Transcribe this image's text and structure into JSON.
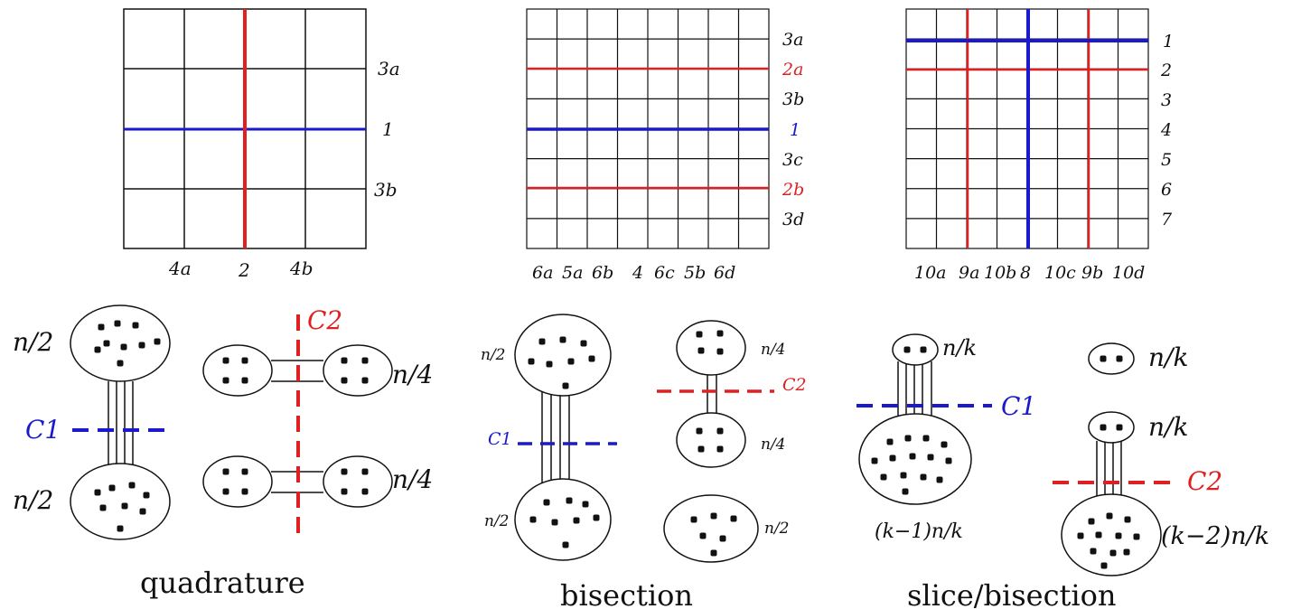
{
  "colors": {
    "black": "#111111",
    "red": "#e02020",
    "blue": "#1a1acc"
  },
  "grid1": {
    "right_labels": [
      {
        "text": "3a",
        "color": "black"
      },
      {
        "text": "1",
        "color": "black"
      },
      {
        "text": "3b",
        "color": "black"
      }
    ],
    "bottom_labels": [
      "4a",
      "2",
      "4b"
    ]
  },
  "grid2": {
    "right_labels": [
      {
        "text": "3a",
        "color": "black"
      },
      {
        "text": "2a",
        "color": "red"
      },
      {
        "text": "3b",
        "color": "black"
      },
      {
        "text": "1",
        "color": "blue"
      },
      {
        "text": "3c",
        "color": "black"
      },
      {
        "text": "2b",
        "color": "red"
      },
      {
        "text": "3d",
        "color": "black"
      }
    ],
    "bottom_labels": [
      "6a",
      "5a",
      "6b",
      "4",
      "6c",
      "5b",
      "6d"
    ]
  },
  "grid3": {
    "right_labels": [
      {
        "text": "1",
        "color": "black"
      },
      {
        "text": "2",
        "color": "black"
      },
      {
        "text": "3",
        "color": "black"
      },
      {
        "text": "4",
        "color": "black"
      },
      {
        "text": "5",
        "color": "black"
      },
      {
        "text": "6",
        "color": "black"
      },
      {
        "text": "7",
        "color": "black"
      }
    ],
    "bottom_labels": [
      "10a",
      "9a",
      "10b",
      "8",
      "10c",
      "9b",
      "10d"
    ]
  },
  "quadrature": {
    "caption": "quadrature",
    "labels": {
      "top": "n/2",
      "bottom": "n/2",
      "right_top": "n/4",
      "right_bottom": "n/4",
      "cut1": "C1",
      "cut2": "C2"
    }
  },
  "bisection": {
    "caption": "bisection",
    "labels": {
      "top": "n/2",
      "bottom": "n/2",
      "small_top": "n/4",
      "small_bottom": "n/4",
      "single": "n/2",
      "cut1": "C1",
      "cut2": "C2"
    }
  },
  "slice": {
    "caption": "slice/bisection",
    "labels": {
      "small_top": "n/k",
      "big_bottom": "(k−1)n/k",
      "single": "n/k",
      "small_right": "n/k",
      "big_right": "(k−2)n/k",
      "cut1": "C1",
      "cut2": "C2"
    }
  }
}
